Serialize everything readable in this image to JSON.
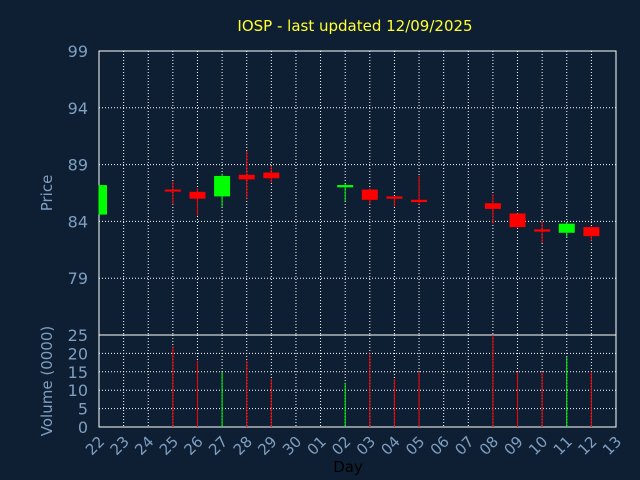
{
  "colors": {
    "background": "#0f1f33",
    "title": "#ffff33",
    "axis_text": "#7f9fc0",
    "frame": "#ffffff",
    "grid": "#ffffff",
    "up": "#00ff00",
    "down": "#ff0000",
    "xlabel": "#000000"
  },
  "chart_data": {
    "type": "candlestick",
    "title": "IOSP - last updated 12/09/2025",
    "xlabel": "Day",
    "grid": true,
    "price_panel": {
      "ylabel": "Price",
      "ylim": [
        74,
        99
      ],
      "yticks": [
        99,
        94,
        89,
        84,
        79
      ]
    },
    "volume_panel": {
      "ylabel": "Volume (0000)",
      "ylim": [
        0,
        25
      ],
      "yticks": [
        25,
        20,
        15,
        10,
        5,
        0
      ]
    },
    "x_tick_labels": [
      "22",
      "23",
      "24",
      "25",
      "26",
      "27",
      "28",
      "29",
      "30",
      "01",
      "02",
      "03",
      "04",
      "05",
      "06",
      "07",
      "08",
      "09",
      "10",
      "11",
      "12",
      "13"
    ],
    "candles": [
      {
        "x": "22",
        "open": 84.6,
        "high": 87.2,
        "low": 84.6,
        "close": 87.2,
        "volume": 0
      },
      {
        "x": "25",
        "open": 86.8,
        "high": 87.5,
        "low": 85.5,
        "close": 86.7,
        "volume": 22
      },
      {
        "x": "26",
        "open": 86.6,
        "high": 86.9,
        "low": 84.5,
        "close": 86.0,
        "volume": 18
      },
      {
        "x": "27",
        "open": 86.2,
        "high": 88.2,
        "low": 85.3,
        "close": 88.0,
        "volume": 15
      },
      {
        "x": "28",
        "open": 88.1,
        "high": 90.2,
        "low": 86.0,
        "close": 87.7,
        "volume": 18
      },
      {
        "x": "29",
        "open": 88.3,
        "high": 88.9,
        "low": 87.4,
        "close": 87.8,
        "volume": 13
      },
      {
        "x": "02",
        "open": 87.0,
        "high": 87.3,
        "low": 85.8,
        "close": 87.2,
        "volume": 12
      },
      {
        "x": "03",
        "open": 86.8,
        "high": 86.9,
        "low": 85.5,
        "close": 85.9,
        "volume": 20
      },
      {
        "x": "04",
        "open": 86.2,
        "high": 86.2,
        "low": 85.3,
        "close": 86.0,
        "volume": 13
      },
      {
        "x": "05",
        "open": 85.9,
        "high": 88.0,
        "low": 85.5,
        "close": 85.7,
        "volume": 15
      },
      {
        "x": "08",
        "open": 85.6,
        "high": 86.4,
        "low": 83.8,
        "close": 85.1,
        "volume": 25
      },
      {
        "x": "09",
        "open": 84.7,
        "high": 84.7,
        "low": 83.4,
        "close": 83.5,
        "volume": 15
      },
      {
        "x": "10",
        "open": 83.3,
        "high": 84.0,
        "low": 82.1,
        "close": 83.1,
        "volume": 15
      },
      {
        "x": "11",
        "open": 83.0,
        "high": 83.9,
        "low": 82.6,
        "close": 83.8,
        "volume": 19
      },
      {
        "x": "12",
        "open": 83.5,
        "high": 83.5,
        "low": 82.3,
        "close": 82.7,
        "volume": 15
      }
    ]
  }
}
